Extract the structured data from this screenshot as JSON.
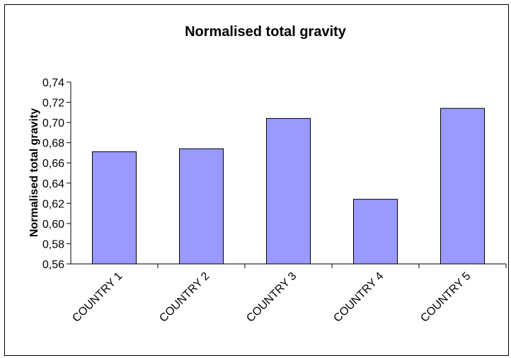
{
  "chart_data": {
    "type": "bar",
    "title": "Normalised total gravity",
    "xlabel": "",
    "ylabel": "Normalised total gravity",
    "categories": [
      "COUNTRY 1",
      "COUNTRY 2",
      "COUNTRY 3",
      "COUNTRY 4",
      "COUNTRY 5"
    ],
    "values": [
      0.671,
      0.674,
      0.704,
      0.624,
      0.714
    ],
    "ylim": [
      0.56,
      0.74
    ],
    "yticks": [
      "0,56",
      "0,58",
      "0,60",
      "0,62",
      "0,64",
      "0,66",
      "0,68",
      "0,70",
      "0,72",
      "0,74"
    ],
    "grid": false,
    "legend": "none",
    "colors": {
      "bar": "#9999ff",
      "bar_border": "#000000",
      "axis": "#000000"
    }
  }
}
